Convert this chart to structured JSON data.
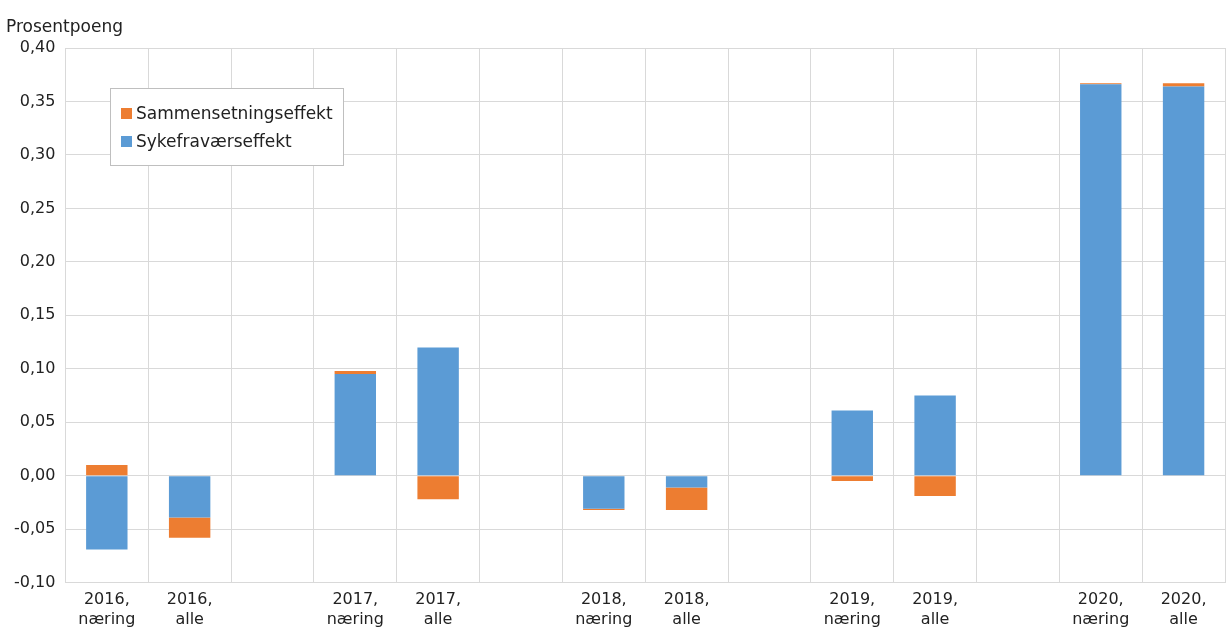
{
  "chart_data": {
    "type": "bar",
    "stacked": true,
    "ylabel": "Prosentpoeng",
    "categories": [
      "2016, næring",
      "2016, alle",
      null,
      "2017, næring",
      "2017, alle",
      null,
      "2018, næring",
      "2018, alle",
      null,
      "2019, næring",
      "2019, alle",
      null,
      "2020, næring",
      "2020, alle"
    ],
    "series": [
      {
        "name": "Sykefraværseffekt",
        "color": "#5b9bd5",
        "values": [
          -0.069,
          -0.039,
          null,
          0.095,
          0.12,
          null,
          -0.031,
          -0.011,
          null,
          0.061,
          0.075,
          null,
          0.366,
          0.364
        ]
      },
      {
        "name": "Sammensetningseffekt",
        "color": "#ed7d31",
        "values": [
          0.01,
          -0.019,
          null,
          0.003,
          -0.022,
          null,
          -0.001,
          -0.021,
          null,
          -0.005,
          -0.019,
          null,
          0.001,
          0.003
        ]
      }
    ],
    "ylim": [
      -0.1,
      0.4
    ],
    "yticks": [
      {
        "value": -0.1,
        "label": "-0,10"
      },
      {
        "value": -0.05,
        "label": "-0,05"
      },
      {
        "value": 0,
        "label": "0,00"
      },
      {
        "value": 0.05,
        "label": "0,05"
      },
      {
        "value": 0.1,
        "label": "0,10"
      },
      {
        "value": 0.15,
        "label": "0,15"
      },
      {
        "value": 0.2,
        "label": "0,20"
      },
      {
        "value": 0.25,
        "label": "0,25"
      },
      {
        "value": 0.3,
        "label": "0,30"
      },
      {
        "value": 0.35,
        "label": "0,35"
      },
      {
        "value": 0.4,
        "label": "0,40"
      }
    ],
    "grid": true,
    "legend": "top left"
  }
}
